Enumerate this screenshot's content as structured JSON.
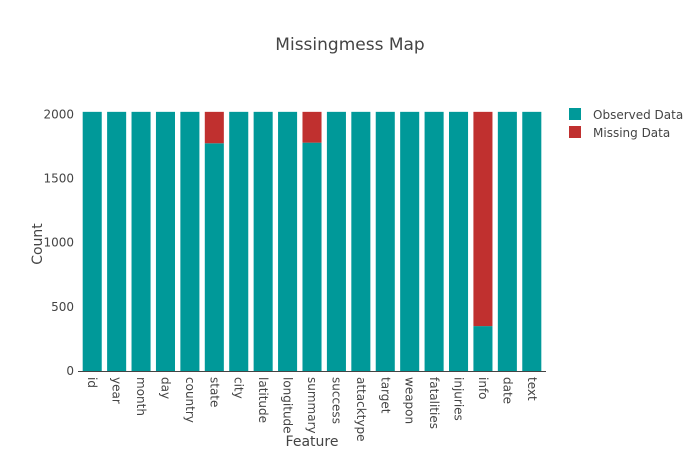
{
  "chart_data": {
    "type": "bar",
    "stacked": true,
    "title": "Missingmess Map",
    "xlabel": "Feature",
    "ylabel": "Count",
    "ylim": [
      0,
      2050
    ],
    "yticks": [
      0,
      500,
      1000,
      1500,
      2000
    ],
    "grid": false,
    "legend_position": "top-right",
    "categories": [
      "id",
      "year",
      "month",
      "day",
      "country",
      "state",
      "city",
      "latitude",
      "longitude",
      "summary",
      "success",
      "attacktype",
      "target",
      "weapon",
      "fatalities",
      "injuries",
      "info",
      "date",
      "text"
    ],
    "series": [
      {
        "name": "Observed Data",
        "color": "#009999",
        "values": [
          2020,
          2020,
          2020,
          2020,
          2020,
          1775,
          2020,
          2020,
          2020,
          1780,
          2020,
          2020,
          2020,
          2020,
          2020,
          2020,
          350,
          2020,
          2020
        ]
      },
      {
        "name": "Missing Data",
        "color": "#c0302f",
        "values": [
          0,
          0,
          0,
          0,
          0,
          245,
          0,
          0,
          0,
          240,
          0,
          0,
          0,
          0,
          0,
          0,
          1670,
          0,
          0
        ]
      }
    ]
  }
}
